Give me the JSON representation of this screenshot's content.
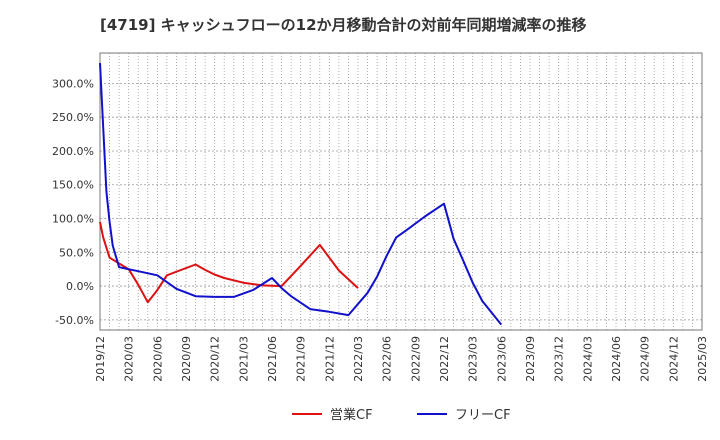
{
  "chart_data": {
    "type": "line",
    "title": "[4719]  キャッシュフローの12か月移動合計の対前年同期増減率の推移",
    "xlabel": "",
    "ylabel": "",
    "ylim": [
      -65,
      345
    ],
    "y_ticks": [
      300,
      250,
      200,
      150,
      100,
      50,
      0,
      -50
    ],
    "y_tick_labels": [
      "300.0%",
      "250.0%",
      "200.0%",
      "150.0%",
      "100.0%",
      "50.0%",
      "0.0%",
      "-50.0%"
    ],
    "x_tick_labels": [
      "2019/12",
      "2020/03",
      "2020/06",
      "2020/09",
      "2020/12",
      "2021/03",
      "2021/06",
      "2021/09",
      "2021/12",
      "2022/03",
      "2022/06",
      "2022/09",
      "2022/12",
      "2023/03",
      "2023/06",
      "2023/09",
      "2023/12",
      "2024/03",
      "2024/06",
      "2024/09",
      "2024/12",
      "2025/03"
    ],
    "grid": true,
    "legend_position": "bottom-center",
    "series": [
      {
        "name": "営業CF",
        "color": "#dd1111",
        "points": [
          [
            0,
            95
          ],
          [
            1,
            72
          ],
          [
            3,
            42
          ],
          [
            9,
            25
          ],
          [
            12,
            2
          ],
          [
            15,
            -24
          ],
          [
            18,
            -6
          ],
          [
            21,
            16
          ],
          [
            25,
            23
          ],
          [
            30,
            32
          ],
          [
            33,
            24
          ],
          [
            36,
            17
          ],
          [
            39,
            12
          ],
          [
            45,
            5
          ],
          [
            51,
            1
          ],
          [
            57,
            0
          ],
          [
            63,
            30
          ],
          [
            69,
            61
          ],
          [
            75,
            23
          ],
          [
            81,
            -3
          ]
        ]
      },
      {
        "name": "フリーCF",
        "color": "#1111cc",
        "points": [
          [
            0,
            330
          ],
          [
            1,
            235
          ],
          [
            2,
            140
          ],
          [
            3,
            95
          ],
          [
            4,
            60
          ],
          [
            6,
            28
          ],
          [
            12,
            22
          ],
          [
            18,
            16
          ],
          [
            24,
            -4
          ],
          [
            30,
            -15
          ],
          [
            36,
            -16
          ],
          [
            42,
            -16
          ],
          [
            48,
            -6
          ],
          [
            54,
            12
          ],
          [
            57,
            -3
          ],
          [
            60,
            -15
          ],
          [
            66,
            -34
          ],
          [
            72,
            -38
          ],
          [
            78,
            -43
          ],
          [
            84,
            -10
          ],
          [
            87,
            14
          ],
          [
            90,
            45
          ],
          [
            93,
            72
          ],
          [
            96,
            82
          ],
          [
            102,
            103
          ],
          [
            108,
            122
          ],
          [
            111,
            70
          ],
          [
            114,
            38
          ],
          [
            117,
            5
          ],
          [
            120,
            -22
          ],
          [
            126,
            -57
          ]
        ]
      }
    ]
  }
}
